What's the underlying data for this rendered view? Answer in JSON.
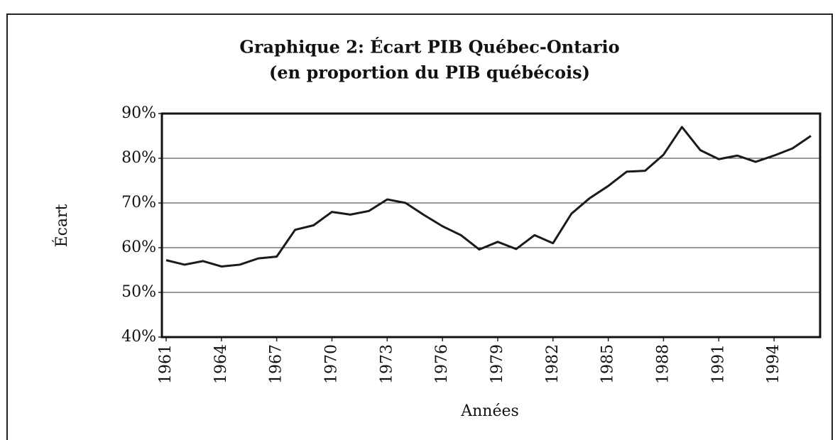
{
  "chart_data": {
    "type": "line",
    "title": "Graphique 2: Écart PIB Québec-Ontario",
    "subtitle": "(en proportion du PIB québécois)",
    "x_label": "Années",
    "y_label": "Écart",
    "x": [
      1961,
      1962,
      1963,
      1964,
      1965,
      1966,
      1967,
      1968,
      1969,
      1970,
      1971,
      1972,
      1973,
      1974,
      1975,
      1976,
      1977,
      1978,
      1979,
      1980,
      1981,
      1982,
      1983,
      1984,
      1985,
      1986,
      1987,
      1988,
      1989,
      1990,
      1991,
      1992,
      1993,
      1994,
      1995,
      1996
    ],
    "series": [
      {
        "color": "#1a1a1a",
        "values": [
          57.2,
          56.2,
          57,
          55.8,
          56.2,
          57.6,
          58,
          64,
          65,
          68,
          67.4,
          68.2,
          70.8,
          70,
          67.3,
          64.8,
          62.8,
          59.6,
          61.3,
          59.7,
          62.8,
          61,
          67.6,
          71.1,
          73.8,
          77,
          77.2,
          80.8,
          87,
          81.8,
          79.8,
          80.6,
          79.2,
          80.6,
          82.2,
          85
        ]
      }
    ],
    "xlim": [
      1961,
      1996
    ],
    "xticks": [
      1961,
      1964,
      1967,
      1970,
      1973,
      1976,
      1979,
      1982,
      1985,
      1988,
      1991,
      1994
    ],
    "ylim": [
      40,
      90
    ],
    "yticks": [
      {
        "value": 40,
        "label": "40%"
      },
      {
        "value": 50,
        "label": "50%"
      },
      {
        "value": 60,
        "label": "60%"
      },
      {
        "value": 70,
        "label": "70%"
      },
      {
        "value": 80,
        "label": "80%"
      },
      {
        "value": 90,
        "label": "90%"
      }
    ],
    "grid": true
  }
}
